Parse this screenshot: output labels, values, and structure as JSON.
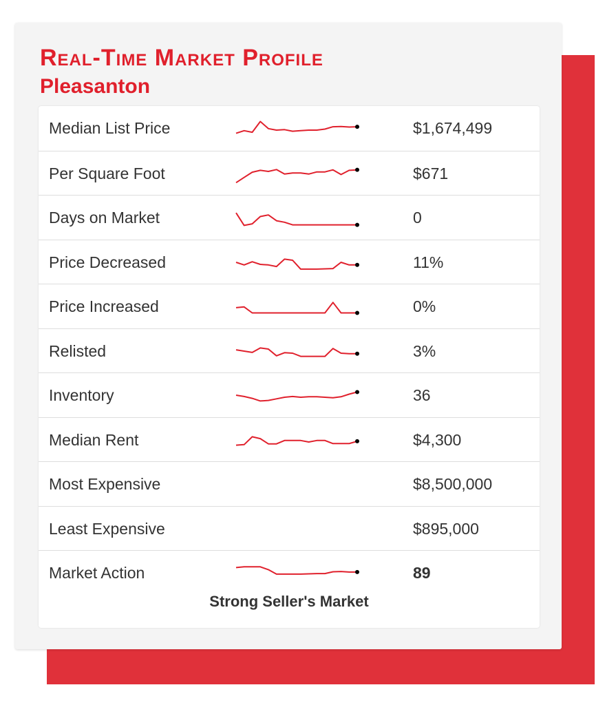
{
  "title": "Real-Time Market Profile",
  "subtitle": "Pleasanton",
  "colors": {
    "accent": "#e0202c",
    "sparkline": "#e0202c",
    "endpoint": "#000000"
  },
  "footer": "Strong Seller's Market",
  "chart_data": {
    "type": "table",
    "columns": [
      "metric",
      "trend",
      "value"
    ],
    "rows": [
      {
        "label": "Median List Price",
        "value": "$1,674,499",
        "bold": false,
        "trend": [
          30,
          40,
          34,
          75,
          48,
          42,
          44,
          38,
          40,
          42,
          42,
          46,
          55,
          56,
          54,
          55
        ]
      },
      {
        "label": "Per Square Foot",
        "value": "$671",
        "bold": false,
        "trend": [
          15,
          35,
          55,
          62,
          58,
          65,
          48,
          52,
          52,
          48,
          56,
          56,
          64,
          46,
          62,
          64
        ]
      },
      {
        "label": "Days on Market",
        "value": "0",
        "bold": false,
        "trend": [
          68,
          20,
          26,
          54,
          60,
          38,
          32,
          22,
          22,
          22,
          22,
          22,
          22,
          22,
          22,
          22
        ]
      },
      {
        "label": "Price Decreased",
        "value": "11%",
        "bold": false,
        "trend": [
          50,
          40,
          52,
          42,
          40,
          34,
          62,
          58,
          24,
          24,
          24,
          25,
          26,
          50,
          40,
          40
        ]
      },
      {
        "label": "Price Increased",
        "value": "0%",
        "bold": false,
        "trend": [
          45,
          48,
          25,
          25,
          25,
          25,
          25,
          25,
          25,
          25,
          25,
          25,
          65,
          25,
          25,
          25
        ]
      },
      {
        "label": "Relisted",
        "value": "3%",
        "bold": false,
        "trend": [
          55,
          50,
          45,
          62,
          58,
          32,
          44,
          42,
          30,
          30,
          30,
          30,
          60,
          42,
          40,
          40
        ]
      },
      {
        "label": "Inventory",
        "value": "36",
        "bold": false,
        "trend": [
          50,
          45,
          38,
          28,
          30,
          36,
          42,
          45,
          42,
          44,
          44,
          42,
          40,
          44,
          54,
          62
        ]
      },
      {
        "label": "Median Rent",
        "value": "$4,300",
        "bold": false,
        "trend": [
          30,
          32,
          62,
          55,
          35,
          35,
          48,
          48,
          48,
          42,
          48,
          48,
          36,
          36,
          36,
          45
        ]
      },
      {
        "label": "Most Expensive",
        "value": "$8,500,000",
        "bold": false,
        "trend": []
      },
      {
        "label": "Least Expensive",
        "value": "$895,000",
        "bold": false,
        "trend": []
      },
      {
        "label": "Market Action",
        "value": "89",
        "bold": true,
        "trend": [
          70,
          73,
          73,
          73,
          62,
          45,
          45,
          45,
          45,
          46,
          47,
          47,
          54,
          55,
          53,
          53
        ]
      }
    ]
  }
}
